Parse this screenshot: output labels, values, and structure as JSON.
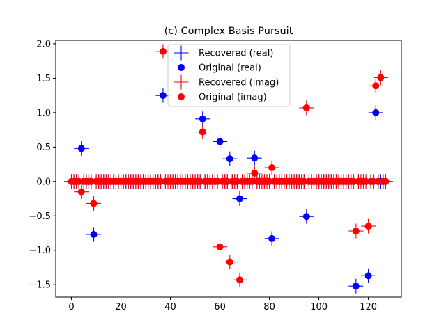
{
  "chart_data": {
    "type": "scatter",
    "title": "(c) Complex Basis Pursuit",
    "xlabel": "",
    "ylabel": "",
    "xlim": [
      -6.35,
      133.35
    ],
    "ylim": [
      -1.68,
      2.05
    ],
    "xticks": [
      0,
      20,
      40,
      60,
      80,
      100,
      120
    ],
    "yticks": [
      -1.5,
      -1.0,
      -0.5,
      0.0,
      0.5,
      1.0,
      1.5,
      2.0
    ],
    "ytick_labels": [
      "−1.5",
      "−1.0",
      "−0.5",
      "0.0",
      "0.5",
      "1.0",
      "1.5",
      "2.0"
    ],
    "grid": false,
    "legend_position": "upper center",
    "n_points": 128,
    "colors": {
      "real": "#0000ff",
      "imag": "#ff0000"
    },
    "series": [
      {
        "name": "Recovered (real)",
        "marker": "plus",
        "color": "#0000ff",
        "points": [
          [
            4,
            0.48
          ],
          [
            9,
            -0.77
          ],
          [
            37,
            1.25
          ],
          [
            53,
            0.91
          ],
          [
            60,
            0.58
          ],
          [
            64,
            0.33
          ],
          [
            68,
            -0.25
          ],
          [
            74,
            0.34
          ],
          [
            81,
            -0.83
          ],
          [
            95,
            -0.51
          ],
          [
            115,
            -1.52
          ],
          [
            120,
            -1.37
          ],
          [
            123,
            1.0
          ]
        ]
      },
      {
        "name": "Original (real)",
        "marker": "circle",
        "color": "#0000ff",
        "points": [
          [
            4,
            0.48
          ],
          [
            9,
            -0.77
          ],
          [
            37,
            1.25
          ],
          [
            53,
            0.91
          ],
          [
            60,
            0.58
          ],
          [
            64,
            0.33
          ],
          [
            68,
            -0.25
          ],
          [
            74,
            0.34
          ],
          [
            81,
            -0.83
          ],
          [
            95,
            -0.51
          ],
          [
            115,
            -1.52
          ],
          [
            120,
            -1.37
          ],
          [
            123,
            1.0
          ]
        ]
      },
      {
        "name": "Recovered (imag)",
        "marker": "plus",
        "color": "#ff0000",
        "points": [
          [
            4,
            -0.15
          ],
          [
            9,
            -0.32
          ],
          [
            37,
            1.89
          ],
          [
            53,
            0.72
          ],
          [
            60,
            -0.95
          ],
          [
            64,
            -1.17
          ],
          [
            68,
            -1.43
          ],
          [
            74,
            0.12
          ],
          [
            81,
            0.2
          ],
          [
            95,
            1.07
          ],
          [
            115,
            -0.72
          ],
          [
            120,
            -0.65
          ],
          [
            123,
            1.39
          ],
          [
            125,
            1.51
          ]
        ]
      },
      {
        "name": "Original (imag)",
        "marker": "circle",
        "color": "#ff0000",
        "points": [
          [
            4,
            -0.15
          ],
          [
            9,
            -0.32
          ],
          [
            37,
            1.89
          ],
          [
            53,
            0.72
          ],
          [
            60,
            -0.95
          ],
          [
            64,
            -1.17
          ],
          [
            68,
            -1.43
          ],
          [
            74,
            0.12
          ],
          [
            81,
            0.2
          ],
          [
            95,
            1.07
          ],
          [
            115,
            -0.72
          ],
          [
            120,
            -0.65
          ],
          [
            123,
            1.39
          ],
          [
            125,
            1.51
          ]
        ]
      }
    ]
  }
}
